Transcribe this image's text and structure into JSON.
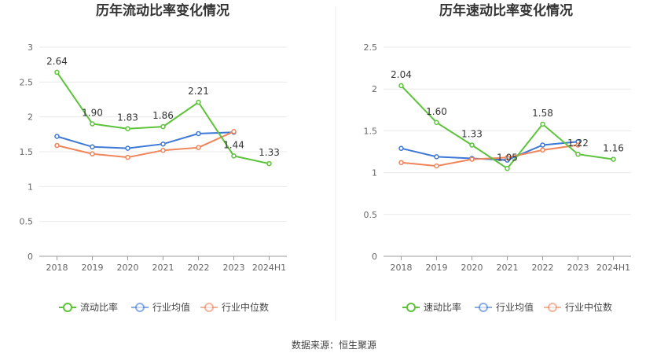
{
  "source_text": "数据来源：恒生聚源",
  "chart_data": [
    {
      "type": "line",
      "title": "历年流动比率变化情况",
      "categories": [
        "2018",
        "2019",
        "2020",
        "2021",
        "2022",
        "2023",
        "2024H1"
      ],
      "ylim": [
        0,
        3
      ],
      "yticks": [
        "0",
        "0.5",
        "1",
        "1.5",
        "2",
        "2.5",
        "3"
      ],
      "ytick_values": [
        0,
        0.5,
        1,
        1.5,
        2,
        2.5,
        3
      ],
      "grid": true,
      "legend_position": "bottom",
      "series": [
        {
          "name": "流动比率",
          "color": "#5cc33a",
          "values": [
            2.64,
            1.9,
            1.83,
            1.86,
            2.21,
            1.44,
            1.33
          ],
          "labels": [
            "2.64",
            "1.90",
            "1.83",
            "1.86",
            "2.21",
            "1.44",
            "1.33"
          ]
        },
        {
          "name": "行业均值",
          "color": "#3d78d6",
          "values": [
            1.72,
            1.57,
            1.55,
            1.61,
            1.76,
            1.78,
            null
          ]
        },
        {
          "name": "行业中位数",
          "color": "#f0845a",
          "values": [
            1.59,
            1.47,
            1.42,
            1.52,
            1.56,
            1.79,
            null
          ]
        }
      ]
    },
    {
      "type": "line",
      "title": "历年速动比率变化情况",
      "categories": [
        "2018",
        "2019",
        "2020",
        "2021",
        "2022",
        "2023",
        "2024H1"
      ],
      "ylim": [
        0,
        2.5
      ],
      "yticks": [
        "0",
        "0.5",
        "1",
        "1.5",
        "2",
        "2.5"
      ],
      "ytick_values": [
        0,
        0.5,
        1,
        1.5,
        2,
        2.5
      ],
      "grid": true,
      "legend_position": "bottom",
      "series": [
        {
          "name": "速动比率",
          "color": "#5cc33a",
          "values": [
            2.04,
            1.6,
            1.33,
            1.05,
            1.58,
            1.22,
            1.16
          ],
          "labels": [
            "2.04",
            "1.60",
            "1.33",
            "1.05",
            "1.58",
            "1.22",
            "1.16"
          ]
        },
        {
          "name": "行业均值",
          "color": "#3d78d6",
          "values": [
            1.29,
            1.19,
            1.17,
            1.15,
            1.33,
            1.37,
            null
          ]
        },
        {
          "name": "行业中位数",
          "color": "#f0845a",
          "values": [
            1.12,
            1.08,
            1.16,
            1.18,
            1.27,
            1.33,
            null
          ]
        }
      ]
    }
  ]
}
